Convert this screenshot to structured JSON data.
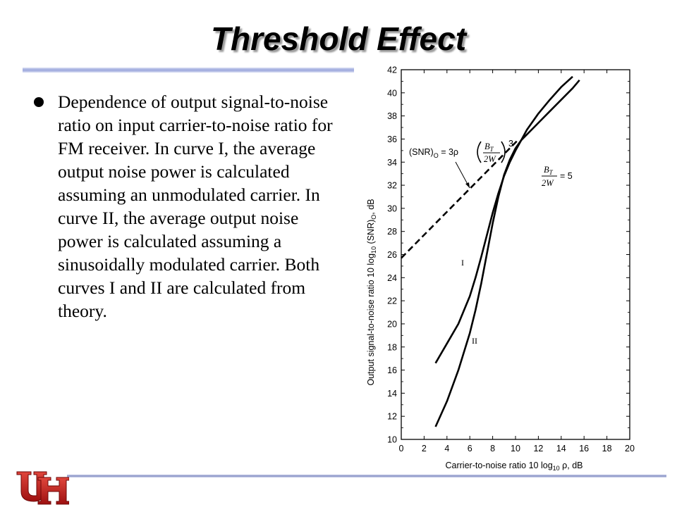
{
  "slide": {
    "title": "Threshold Effect",
    "bullet": "Dependence of output signal-to-noise ratio on input carrier-to-noise ratio for FM receiver. In curve I, the average output noise power is calculated assuming an unmodulated carrier. In curve II, the average output noise power is calculated assuming a sinusoidally modulated carrier. Both curves I and II are calculated from theory."
  },
  "chart_data": {
    "type": "line",
    "xlabel": "Carrier-to-noise ratio  10 log10 ρ, dB",
    "ylabel": "Output signal-to-noise ratio 10 log10 (SNR)O, dB",
    "xlim": [
      0,
      20
    ],
    "ylim": [
      10,
      42
    ],
    "xticks": [
      0,
      2,
      4,
      6,
      8,
      10,
      12,
      14,
      16,
      18,
      20
    ],
    "yticks": [
      10,
      12,
      14,
      16,
      18,
      20,
      22,
      24,
      26,
      28,
      30,
      32,
      34,
      36,
      38,
      40,
      42
    ],
    "grid": false,
    "series": [
      {
        "name": "I",
        "style": "solid",
        "x": [
          3.0,
          4.0,
          5.0,
          6.0,
          6.5,
          7.0,
          7.5,
          8.0,
          8.5,
          9.0,
          9.5,
          10.0,
          10.5,
          11.0,
          12.0,
          13.0,
          14.0,
          15.0
        ],
        "y": [
          16.6,
          18.3,
          20.0,
          22.4,
          24.0,
          25.8,
          27.7,
          29.6,
          31.3,
          32.8,
          34.0,
          35.0,
          35.9,
          36.8,
          38.2,
          39.4,
          40.5,
          41.4
        ]
      },
      {
        "name": "II",
        "style": "solid",
        "x": [
          3.0,
          4.0,
          5.0,
          6.0,
          6.5,
          7.0,
          7.5,
          8.0,
          8.5,
          9.0,
          9.5,
          10.0,
          10.5,
          11.0,
          12.0,
          13.0,
          14.0,
          15.0,
          15.6
        ],
        "y": [
          11.1,
          13.3,
          16.0,
          19.2,
          21.2,
          23.5,
          26.1,
          28.7,
          31.0,
          32.9,
          34.2,
          35.2,
          35.9,
          36.4,
          37.4,
          38.4,
          39.4,
          40.4,
          41.1
        ]
      },
      {
        "name": "(SNR)O = 3ρ(BT/2W)³",
        "style": "dashed",
        "x": [
          0.0,
          10.3
        ],
        "y": [
          25.7,
          36.0
        ]
      }
    ],
    "annotations": {
      "formula": {
        "lhs": "(SNR)",
        "lhs_sub": "O",
        "eq": " = 3ρ",
        "num": "B",
        "num_sub": "T",
        "den": "2W",
        "exp": "3"
      },
      "ratio": {
        "num": "B",
        "num_sub": "T",
        "den": "2W",
        "value": "= 5"
      },
      "curve_labels": [
        "I",
        "II"
      ]
    }
  }
}
